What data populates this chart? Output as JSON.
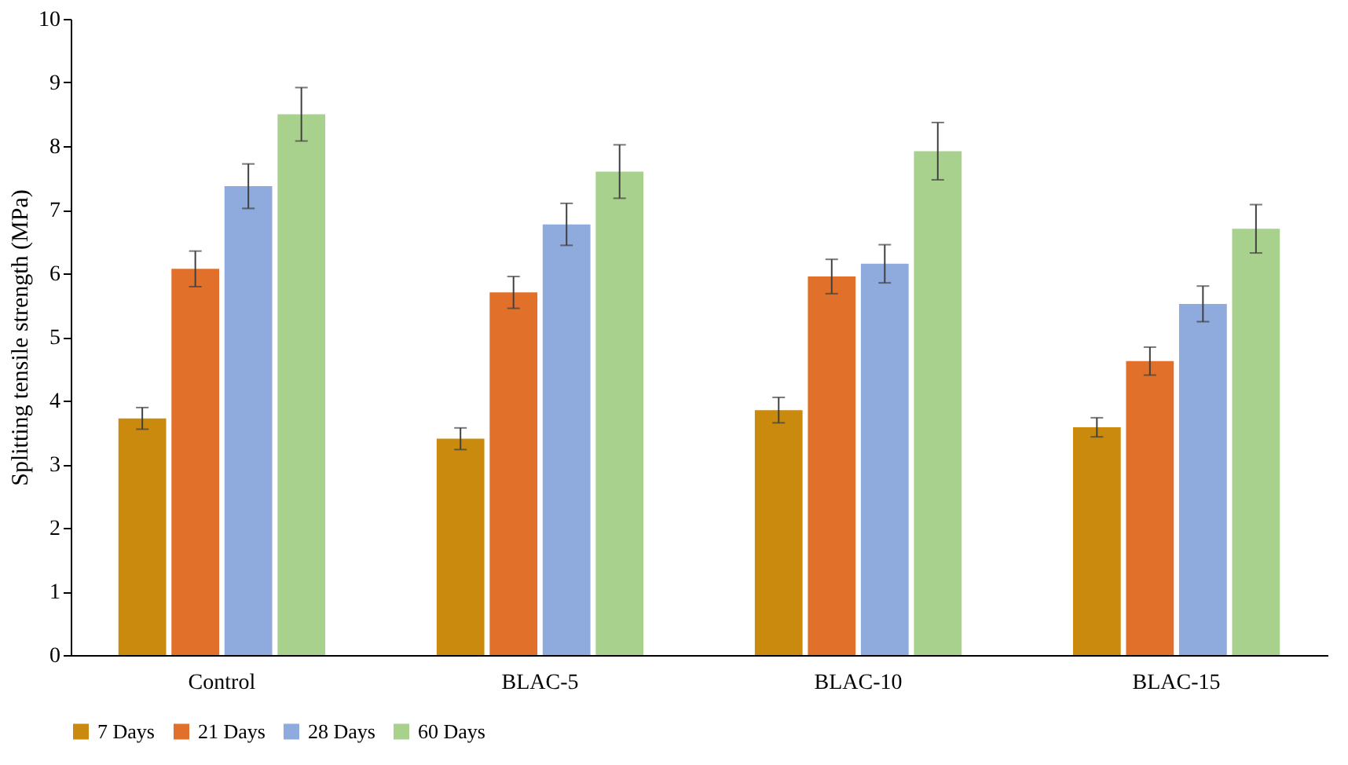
{
  "chart_data": {
    "type": "bar",
    "ylabel": "Splitting tensile strength (MPa)",
    "categories": [
      "Control",
      "BLAC-5",
      "BLAC-10",
      "BLAC-15"
    ],
    "series": [
      {
        "name": "7 Days",
        "color": "#c98a0e",
        "values": [
          3.72,
          3.4,
          3.85,
          3.58
        ],
        "errors": [
          0.17,
          0.17,
          0.2,
          0.15
        ]
      },
      {
        "name": "21 Days",
        "color": "#e0702a",
        "values": [
          6.07,
          5.7,
          5.95,
          4.62
        ],
        "errors": [
          0.28,
          0.25,
          0.27,
          0.22
        ]
      },
      {
        "name": "28 Days",
        "color": "#8faadc",
        "values": [
          7.37,
          6.77,
          6.15,
          5.52
        ],
        "errors": [
          0.35,
          0.33,
          0.3,
          0.28
        ]
      },
      {
        "name": "60 Days",
        "color": "#a9d18e",
        "values": [
          8.5,
          7.6,
          7.92,
          6.7
        ],
        "errors": [
          0.42,
          0.42,
          0.45,
          0.38
        ]
      }
    ],
    "ylim": [
      0,
      10
    ],
    "yticks": [
      0,
      1,
      2,
      3,
      4,
      5,
      6,
      7,
      8,
      9,
      10
    ],
    "grid": false,
    "legend": "bottom"
  }
}
